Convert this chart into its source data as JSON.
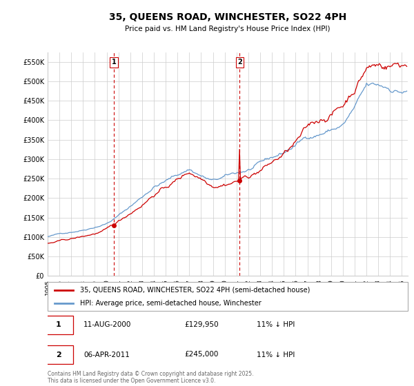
{
  "title": "35, QUEENS ROAD, WINCHESTER, SO22 4PH",
  "subtitle": "Price paid vs. HM Land Registry's House Price Index (HPI)",
  "ylim": [
    0,
    575000
  ],
  "yticks": [
    0,
    50000,
    100000,
    150000,
    200000,
    250000,
    300000,
    350000,
    400000,
    450000,
    500000,
    550000
  ],
  "xlim_start": 1995,
  "xlim_end": 2025.5,
  "legend_line1": "35, QUEENS ROAD, WINCHESTER, SO22 4PH (semi-detached house)",
  "legend_line2": "HPI: Average price, semi-detached house, Winchester",
  "marker1_year": 2000.6,
  "marker1_label": "1",
  "marker1_price": 129950,
  "marker2_year": 2011.27,
  "marker2_label": "2",
  "marker2_price": 245000,
  "annotation1": "11-AUG-2000",
  "annotation1_price": "£129,950",
  "annotation1_pct": "11% ↓ HPI",
  "annotation2": "06-APR-2011",
  "annotation2_price": "£245,000",
  "annotation2_pct": "11% ↓ HPI",
  "footer": "Contains HM Land Registry data © Crown copyright and database right 2025.\nThis data is licensed under the Open Government Licence v3.0.",
  "line_color_property": "#cc0000",
  "line_color_hpi": "#6699cc",
  "background_color": "#ffffff",
  "grid_color": "#cccccc",
  "vline_color": "#cc0000",
  "marker_box_color": "#cc0000"
}
